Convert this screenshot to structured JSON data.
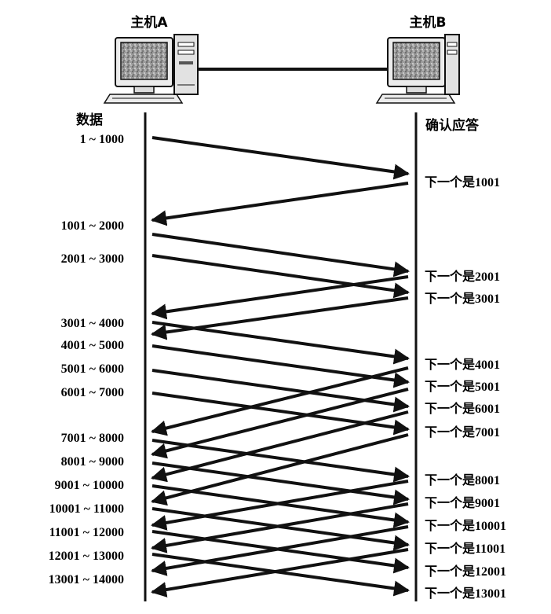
{
  "hosts": {
    "a_label": "主机A",
    "b_label": "主机B"
  },
  "columns": {
    "data_title": "数据",
    "ack_title": "确认应答"
  },
  "segments": [
    {
      "label": "1 ~ 1000"
    },
    {
      "label": "1001 ~ 2000"
    },
    {
      "label": "2001 ~ 3000"
    },
    {
      "label": "3001 ~ 4000"
    },
    {
      "label": "4001 ~ 5000"
    },
    {
      "label": "5001 ~ 6000"
    },
    {
      "label": "6001 ~ 7000"
    },
    {
      "label": "7001 ~ 8000"
    },
    {
      "label": "8001 ~ 9000"
    },
    {
      "label": "9001 ~ 10000"
    },
    {
      "label": "10001 ~ 11000"
    },
    {
      "label": "11001 ~ 12000"
    },
    {
      "label": "12001 ~ 13000"
    },
    {
      "label": "13001 ~ 14000"
    }
  ],
  "acks": [
    {
      "label": "下一个是1001"
    },
    {
      "label": "下一个是2001"
    },
    {
      "label": "下一个是3001"
    },
    {
      "label": "下一个是4001"
    },
    {
      "label": "下一个是5001"
    },
    {
      "label": "下一个是6001"
    },
    {
      "label": "下一个是7001"
    },
    {
      "label": "下一个是8001"
    },
    {
      "label": "下一个是9001"
    },
    {
      "label": "下一个是10001"
    },
    {
      "label": "下一个是11001"
    },
    {
      "label": "下一个是12001"
    },
    {
      "label": "下一个是13001"
    }
  ],
  "colors": {
    "line": "#111111",
    "screen": "#8a8a8a",
    "case": "#d9d9d9"
  },
  "icons": {
    "host_a": "desktop-computer-icon",
    "host_b": "desktop-computer-icon"
  }
}
